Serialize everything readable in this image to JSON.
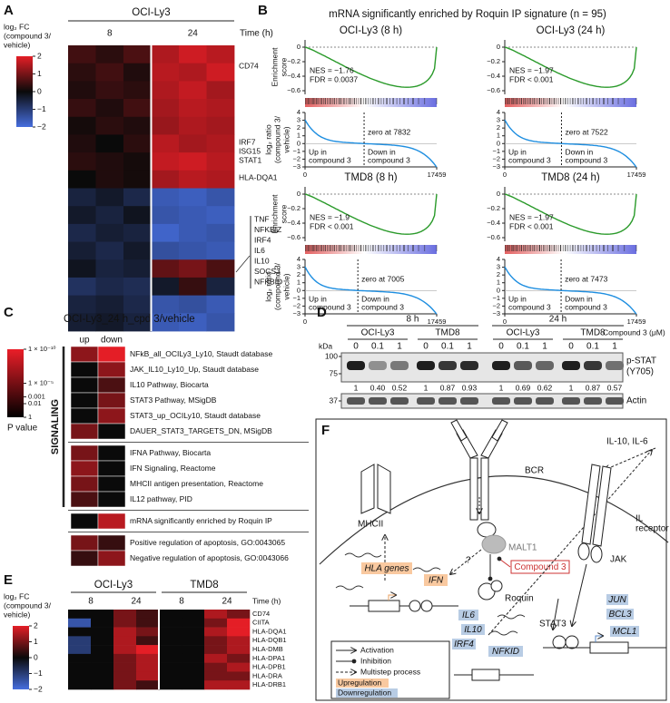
{
  "panel_a": {
    "label": "A",
    "cell_line": "OCI-Ly3",
    "time_labels": [
      "8",
      "24"
    ],
    "time_unit": "Time (h)",
    "legend_title": [
      "log₂ FC",
      "(compound 3/",
      "vehicle)"
    ],
    "legend_lim": [
      -2,
      2
    ],
    "legend_ticks": [
      2,
      1,
      0,
      {
        "value": -1,
        "label": "−1"
      },
      {
        "value": -2,
        "label": "−2"
      }
    ],
    "values": [
      [
        0.5,
        0.3,
        0.6,
        1.5,
        1.8,
        1.6
      ],
      [
        0.3,
        0.5,
        0.2,
        1.6,
        1.5,
        1.8
      ],
      [
        0.2,
        0.4,
        0.3,
        1.5,
        1.7,
        1.4
      ],
      [
        0.4,
        0.2,
        0.5,
        1.4,
        1.6,
        1.5
      ],
      [
        0.1,
        0.3,
        0.2,
        1.3,
        1.5,
        1.4
      ],
      [
        0.2,
        0,
        0.3,
        1.6,
        1.4,
        1.5
      ],
      [
        0.3,
        0.2,
        0.1,
        1.7,
        1.8,
        1.6
      ],
      [
        0,
        0.2,
        0.1,
        1.4,
        1.6,
        1.5
      ],
      [
        -0.5,
        -0.3,
        -0.6,
        -1.6,
        -1.7,
        -1.5
      ],
      [
        -0.3,
        -0.5,
        -0.2,
        -1.5,
        -1.6,
        -1.7
      ],
      [
        -0.6,
        -0.4,
        -0.5,
        -1.8,
        -1.6,
        -1.5
      ],
      [
        -0.4,
        -0.6,
        -0.3,
        -1.4,
        -1.5,
        -1.6
      ],
      [
        -0.2,
        -0.5,
        -0.4,
        0.8,
        1,
        0.6
      ],
      [
        -0.8,
        -0.6,
        -0.7,
        -0.3,
        0.4,
        -0.5
      ],
      [
        -0.5,
        -0.4,
        -0.6,
        -1.5,
        -1.4,
        -1.6
      ],
      [
        -0.4,
        -0.3,
        -0.5,
        -1.6,
        -1.7,
        -1.5
      ]
    ],
    "genes_top": [
      "CD74",
      "IRF7",
      "ISG15",
      "STAT1",
      "HLA-DQA1"
    ],
    "genes_bottom": [
      "TNF",
      "NFKBIZ",
      "IRF4",
      "IL6",
      "IL10",
      "SOCS3",
      "NFKBID"
    ]
  },
  "panel_b": {
    "label": "B",
    "title": "mRNA significantly enriched by Roquin IP signature (n = 95)",
    "es_axis_label": [
      "Enrichment",
      "score"
    ],
    "ratio_axis_label": [
      "log₂ ratio",
      "(compound 3/",
      "vehicle)"
    ],
    "es_lim": [
      -0.65,
      0.1
    ],
    "es_ticks": [
      0,
      {
        "value": -0.2,
        "label": "−0.2"
      },
      {
        "value": -0.4,
        "label": "−0.4"
      },
      {
        "value": -0.6,
        "label": "−0.6"
      }
    ],
    "ratio_lim": [
      -3,
      4
    ],
    "ratio_ticks": [
      4,
      3,
      2,
      1,
      0,
      {
        "value": -1,
        "label": "−1"
      },
      {
        "value": -2,
        "label": "−2"
      },
      {
        "value": -3,
        "label": "−3"
      }
    ],
    "x_lim": [
      0,
      17459
    ],
    "x_ticks": [
      0,
      17459
    ],
    "up_label": [
      "Up in",
      "compound 3"
    ],
    "down_label": [
      "Down in",
      "compound 3"
    ],
    "panels": [
      {
        "title": "OCI-Ly3 (8 h)",
        "nes": "NES = −1.76",
        "fdr": "FDR = 0.0037",
        "zero_label": "zero at 7832",
        "zero_at": 7832
      },
      {
        "title": "OCI-Ly3 (24 h)",
        "nes": "NES = −1.97",
        "fdr": "FDR < 0.001",
        "zero_label": "zero at 7522",
        "zero_at": 7522
      },
      {
        "title": "TMD8 (8 h)",
        "nes": "NES = −1.9",
        "fdr": "FDR < 0.001",
        "zero_label": "zero at 7005",
        "zero_at": 7005
      },
      {
        "title": "TMD8 (24 h)",
        "nes": "NES = −1.97",
        "fdr": "FDR < 0.001",
        "zero_label": "zero at 7473",
        "zero_at": 7473
      }
    ]
  },
  "panel_c": {
    "label": "C",
    "title": "OCI-Ly3_24 h_cpd 3/vehicle",
    "column_labels": [
      "up",
      "down"
    ],
    "group_label": "SIGNALING",
    "legend_title": "P value",
    "legend_ticks": [
      {
        "value": 1e-10,
        "label": "1 × 10⁻¹⁰"
      },
      {
        "value": 1e-05,
        "label": "1 × 10⁻⁵"
      },
      0.001,
      0.01,
      1
    ],
    "groups": [
      {
        "rows": [
          {
            "name": "NFkB_all_OCILy3_Ly10, Staudt database",
            "p": [
              1e-06,
              1e-10
            ]
          },
          {
            "name": "JAK_IL10_Ly10_Up, Staudt database",
            "p": [
              1,
              1e-06
            ]
          },
          {
            "name": "IL10 Pathway, Biocarta",
            "p": [
              1,
              0.001
            ]
          },
          {
            "name": "STAT3 Pathway, MSigDB",
            "p": [
              1,
              1e-05
            ]
          },
          {
            "name": "STAT3_up_OCILy10, Staudt database",
            "p": [
              1,
              1e-06
            ]
          },
          {
            "name": "DAUER_STAT3_TARGETS_DN, MSigDB",
            "p": [
              1e-05,
              1
            ]
          }
        ]
      },
      {
        "rows": [
          {
            "name": "IFNA Pathway, Biocarta",
            "p": [
              1e-05,
              1
            ]
          },
          {
            "name": "IFN Signaling, Reactome",
            "p": [
              1e-06,
              1
            ]
          },
          {
            "name": "MHCII antigen presentation, Reactome",
            "p": [
              1e-05,
              1
            ]
          },
          {
            "name": "IL12 pathway, PID",
            "p": [
              0.001,
              1
            ]
          }
        ]
      },
      {
        "rows": [
          {
            "name": "mRNA significantly enriched by Roquin IP",
            "p": [
              1,
              1e-08
            ]
          }
        ]
      },
      {
        "rows": [
          {
            "name": "Positive regulation of apoptosis, GO:0043065",
            "p": [
              1e-05,
              0.01
            ]
          },
          {
            "name": "Negative regulation of apoptosis, GO:0043066",
            "p": [
              0.01,
              1e-06
            ]
          }
        ]
      }
    ]
  },
  "panel_d": {
    "label": "D",
    "time_labels": [
      "8 h",
      "24 h"
    ],
    "cell_lines": [
      "OCI-Ly3",
      "TMD8",
      "OCI-Ly3",
      "TMD8"
    ],
    "treatment_label": "Compound 3 (μM)",
    "kda_label": "kDa",
    "doses": [
      0,
      0.1,
      1
    ],
    "markers": [
      100,
      75,
      37
    ],
    "band_labels": [
      "p-STAT",
      "(Y705)"
    ],
    "loading_label": "Actin",
    "values": [
      1,
      0.4,
      0.52,
      1,
      0.87,
      0.93,
      1,
      0.69,
      0.62,
      1,
      0.87,
      0.57
    ],
    "value_labels": [
      "1",
      "0.40",
      "0.52",
      "1",
      "0.87",
      "0.93",
      "1",
      "0.69",
      "0.62",
      "1",
      "0.87",
      "0.57"
    ]
  },
  "panel_e": {
    "label": "E",
    "legend_title": [
      "log₂ FC",
      "(compound 3/",
      "vehicle)"
    ],
    "legend_lim": [
      -2,
      2
    ],
    "legend_ticks": [
      2,
      1,
      0,
      {
        "value": -1,
        "label": "−1"
      },
      {
        "value": -2,
        "label": "−2"
      }
    ],
    "cell_lines": [
      "OCI-Ly3",
      "TMD8"
    ],
    "time_labels": [
      "8",
      "24",
      "8",
      "24"
    ],
    "time_unit": "Time (h)",
    "genes": [
      "CD74",
      "CIITA",
      "HLA-DQA1",
      "HLA-DQB1",
      "HLA-DMB",
      "HLA-DPA1",
      "HLA-DPB1",
      "HLA-DRA",
      "HLA-DRB1"
    ],
    "values": [
      [
        0,
        0,
        1,
        0.5,
        0,
        0,
        1.5,
        1
      ],
      [
        -1.5,
        0,
        1,
        0.5,
        0,
        0,
        1,
        2
      ],
      [
        0,
        0,
        1.5,
        1,
        0,
        0,
        1.5,
        2
      ],
      [
        -1,
        0,
        1.5,
        0.5,
        0,
        0,
        1,
        1.5
      ],
      [
        -1,
        0,
        1.5,
        2,
        0,
        0,
        1,
        1.5
      ],
      [
        0,
        0,
        1,
        1.5,
        0,
        0,
        1.5,
        1
      ],
      [
        0,
        0,
        1,
        1.5,
        0,
        0,
        1,
        1.5
      ],
      [
        0,
        0,
        1,
        1.5,
        0,
        0,
        1,
        1
      ],
      [
        0,
        0,
        1,
        0.5,
        0,
        0,
        1.5,
        1.5
      ]
    ]
  },
  "panel_f": {
    "label": "F",
    "bcr": "BCR",
    "mhcii": "MHCII",
    "cytokines": "IL-10, IL-6",
    "il_receptor": [
      "IL",
      "receptor"
    ],
    "jak": "JAK",
    "malt1": "MALT1",
    "question": "?",
    "compound": "Compound 3",
    "roquin": "Roquin",
    "stat3": "STAT3",
    "upregulated": [
      "HLA genes",
      "IFN"
    ],
    "downregulated": [
      "IL6",
      "IL10",
      "IRF4",
      "NFKID",
      "JUN",
      "BCL3",
      "MCL1"
    ],
    "legend": [
      "Activation",
      "Inhibition",
      "Multistep process",
      "Upregulation",
      "Downregulation"
    ]
  }
}
